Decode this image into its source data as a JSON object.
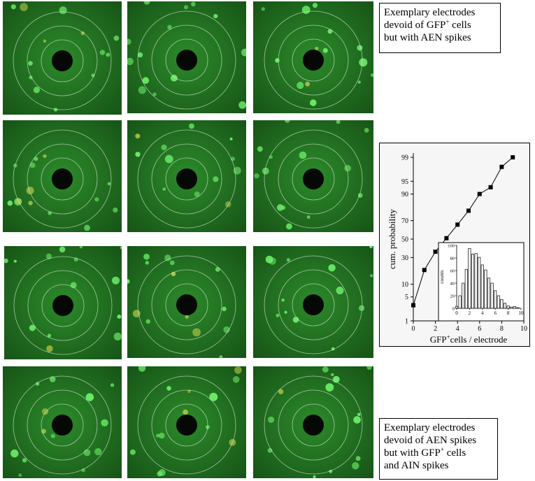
{
  "captions": {
    "top": {
      "line1": "Exemplary electrodes",
      "line2_pre": "devoid of GFP",
      "line2_sup": "+",
      "line2_post": " cells",
      "line3": "but with AEN spikes"
    },
    "bottom": {
      "line1": "Exemplary electrodes",
      "line2": "devoid of AEN spikes",
      "line3_pre": "but with GFP",
      "line3_sup": "+",
      "line3_post": " cells",
      "line4": "and AIN spikes"
    }
  },
  "chart_data": [
    {
      "type": "line",
      "xlabel_pre": "GFP",
      "xlabel_sup": "+",
      "xlabel_post": "cells / electrode",
      "ylabel": "cum. probability",
      "x_ticks": [
        0,
        2,
        4,
        6,
        8,
        10
      ],
      "y_ticks": [
        1,
        5,
        10,
        30,
        50,
        70,
        90,
        95,
        99
      ],
      "y_tick_labels": [
        "1",
        "5",
        "10",
        "30",
        "50",
        "70",
        "90",
        "95",
        "99"
      ],
      "y_scale": "probability",
      "xlim": [
        0,
        10
      ],
      "ylim": [
        1,
        99
      ],
      "x": [
        0,
        1,
        2,
        3,
        4,
        5,
        6,
        7,
        8,
        9
      ],
      "values": [
        3,
        19,
        36,
        51,
        66,
        79,
        90,
        93,
        98,
        99
      ]
    },
    {
      "type": "bar",
      "ylabel": "counts",
      "x_ticks": [
        0,
        2,
        4,
        6,
        8,
        10
      ],
      "y_ticks": [
        0,
        20,
        40,
        60,
        80,
        100
      ],
      "xlim": [
        0,
        10
      ],
      "ylim": [
        0,
        100
      ],
      "bin_centers": [
        0,
        0.5,
        1,
        1.5,
        2,
        2.5,
        3,
        3.5,
        4,
        4.5,
        5,
        5.5,
        6,
        6.5,
        7,
        7.5,
        8,
        8.5,
        9,
        9.5
      ],
      "values": [
        3,
        20,
        40,
        62,
        95,
        86,
        87,
        81,
        69,
        61,
        48,
        40,
        28,
        20,
        14,
        8,
        4,
        2,
        3,
        1
      ]
    }
  ]
}
